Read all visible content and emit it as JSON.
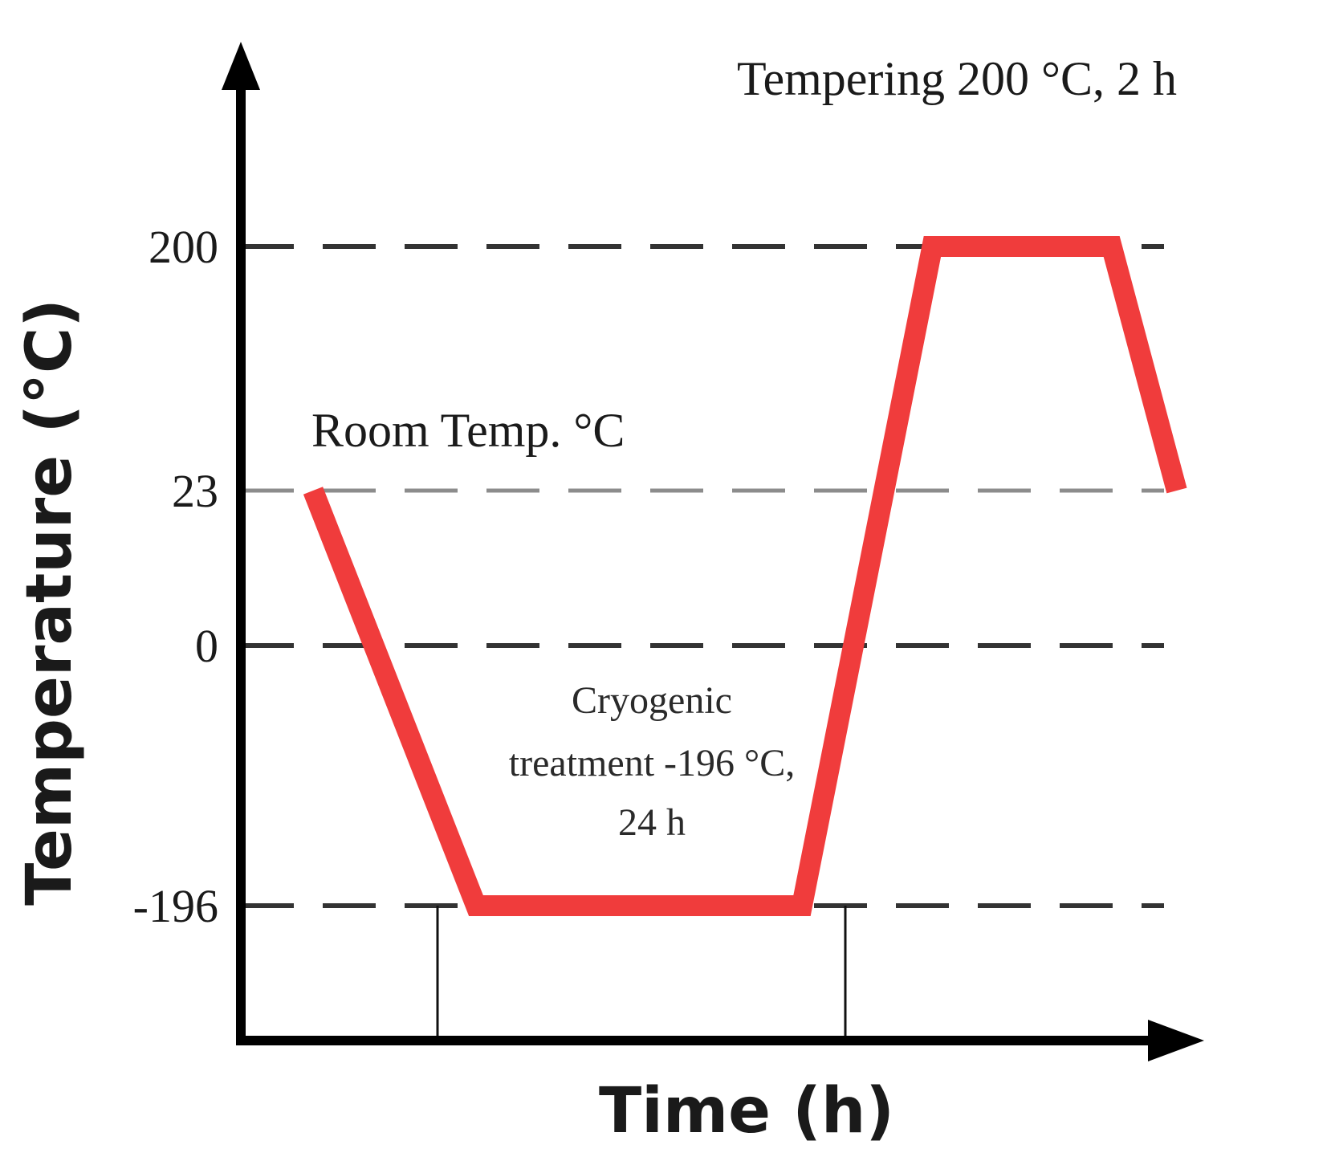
{
  "chart_data": {
    "type": "line",
    "title": "",
    "xlabel": "Time (h)",
    "ylabel": "Temperature  (°C)",
    "y_tick_labels": [
      "200",
      "23",
      "0",
      "-196"
    ],
    "y_levels": [
      200,
      23,
      0,
      -196
    ],
    "grid": "horizontal dashed reference lines",
    "series": [
      {
        "color": "#f03c3c",
        "points": [
          {
            "t": 0.0,
            "temp": 23
          },
          {
            "t": 1.0,
            "temp": -196
          },
          {
            "t": 3.0,
            "temp": -196
          },
          {
            "t": 3.8,
            "temp": 200
          },
          {
            "t": 4.9,
            "temp": 200
          },
          {
            "t": 5.3,
            "temp": 23
          }
        ]
      }
    ],
    "annotations": {
      "room_temp": "Room Temp. °C",
      "cryo_line1": "Cryogenic",
      "cryo_line2": "treatment -196 °C,",
      "cryo_line3": "24 h",
      "tempering": "Tempering 200 °C, 2 h"
    },
    "colors": {
      "curve": "#f03c3c",
      "axis": "#000000",
      "grid_dark": "#333333",
      "grid_light": "#8c8c8c"
    }
  }
}
